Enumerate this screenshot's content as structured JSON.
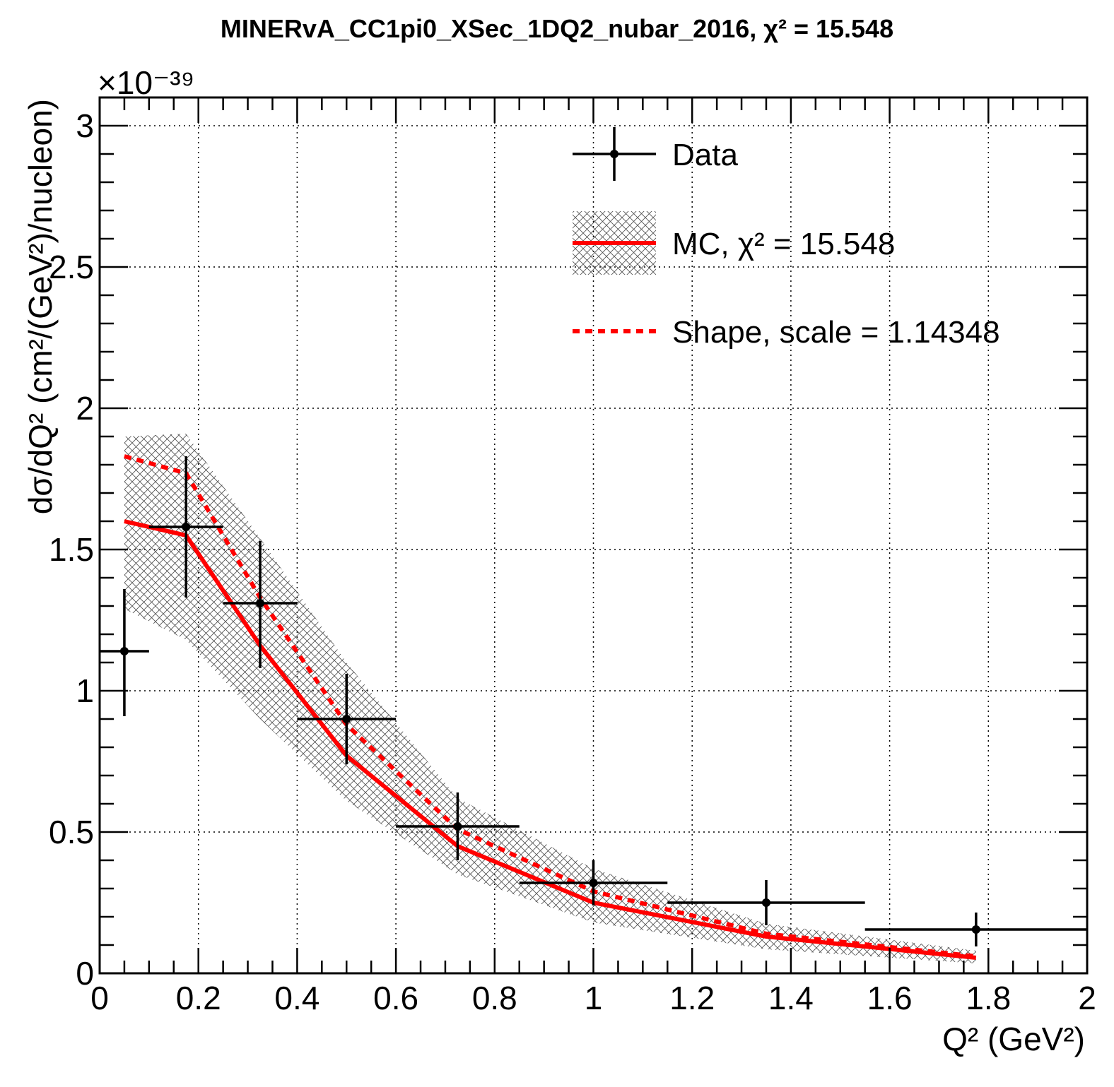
{
  "chart_data": {
    "type": "line",
    "title": "MINERvA_CC1pi0_XSec_1DQ2_nubar_2016, χ² = 15.548",
    "xlabel": "Q² (GeV²)",
    "ylabel": "dσ/dQ² (cm²/(GeV²)/nucleon)",
    "y_exponent": "×10⁻³⁹",
    "xlim": [
      0,
      2
    ],
    "ylim": [
      0,
      3.1
    ],
    "x_ticks": [
      "0",
      "0.2",
      "0.4",
      "0.6",
      "0.8",
      "1",
      "1.2",
      "1.4",
      "1.6",
      "1.8",
      "2"
    ],
    "y_ticks": [
      "0",
      "0.5",
      "1",
      "1.5",
      "2",
      "2.5",
      "3"
    ],
    "grid": true,
    "legend": {
      "position": "top-right",
      "entries": [
        {
          "label": "Data",
          "style": "points"
        },
        {
          "label": "MC, χ² = 15.548",
          "style": "solid-line-with-band"
        },
        {
          "label": "Shape, scale = 1.14348",
          "style": "dashed-line"
        }
      ]
    },
    "colors": {
      "data": "#000000",
      "mc": "#ff0000",
      "shape": "#ff0000",
      "band": "#666666"
    },
    "series": [
      {
        "name": "Data",
        "points": [
          {
            "x": 0.05,
            "xlo": 0.0,
            "xhi": 0.1,
            "y": 1.14,
            "ylo": 0.91,
            "yhi": 1.36
          },
          {
            "x": 0.175,
            "xlo": 0.1,
            "xhi": 0.25,
            "y": 1.58,
            "ylo": 1.33,
            "yhi": 1.83
          },
          {
            "x": 0.325,
            "xlo": 0.25,
            "xhi": 0.4,
            "y": 1.31,
            "ylo": 1.08,
            "yhi": 1.53
          },
          {
            "x": 0.5,
            "xlo": 0.4,
            "xhi": 0.6,
            "y": 0.9,
            "ylo": 0.74,
            "yhi": 1.06
          },
          {
            "x": 0.725,
            "xlo": 0.6,
            "xhi": 0.85,
            "y": 0.52,
            "ylo": 0.4,
            "yhi": 0.64
          },
          {
            "x": 1.0,
            "xlo": 0.85,
            "xhi": 1.15,
            "y": 0.32,
            "ylo": 0.24,
            "yhi": 0.4
          },
          {
            "x": 1.35,
            "xlo": 1.15,
            "xhi": 1.55,
            "y": 0.25,
            "ylo": 0.17,
            "yhi": 0.33
          },
          {
            "x": 1.775,
            "xlo": 1.55,
            "xhi": 2.0,
            "y": 0.155,
            "ylo": 0.095,
            "yhi": 0.215
          }
        ]
      },
      {
        "name": "MC, χ² = 15.548",
        "x": [
          0.05,
          0.175,
          0.325,
          0.5,
          0.725,
          1.0,
          1.35,
          1.775
        ],
        "y": [
          1.6,
          1.55,
          1.16,
          0.77,
          0.45,
          0.25,
          0.13,
          0.055
        ],
        "band_low": [
          1.29,
          1.18,
          0.9,
          0.61,
          0.35,
          0.18,
          0.085,
          0.035
        ],
        "band_high": [
          1.9,
          1.91,
          1.54,
          1.1,
          0.62,
          0.37,
          0.175,
          0.08
        ]
      },
      {
        "name": "Shape, scale = 1.14348",
        "x": [
          0.05,
          0.175,
          0.325,
          0.5,
          0.725,
          1.0,
          1.35,
          1.775
        ],
        "y": [
          1.83,
          1.77,
          1.33,
          0.88,
          0.51,
          0.29,
          0.14,
          0.06
        ]
      }
    ]
  }
}
